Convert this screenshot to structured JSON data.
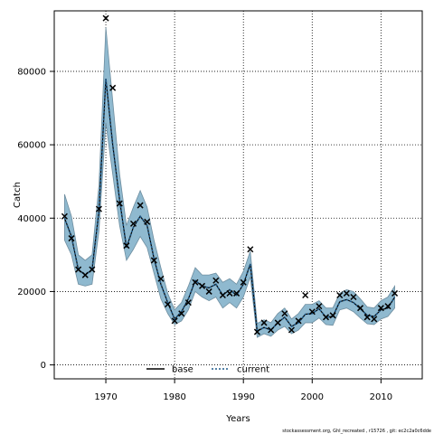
{
  "chart_data": {
    "type": "line",
    "title": "",
    "xlabel": "Years",
    "ylabel": "Catch",
    "xlim": [
      1962.5,
      2016
    ],
    "ylim": [
      -3800,
      96500
    ],
    "x_ticks": [
      1970,
      1980,
      1990,
      2000,
      2010
    ],
    "y_ticks": [
      0,
      20000,
      40000,
      60000,
      80000
    ],
    "grid": true,
    "legend_position": "bottom-center",
    "band_color": "#8fb9cf",
    "band_edge_color": "#6e8ea0",
    "years": [
      1964,
      1965,
      1966,
      1967,
      1968,
      1969,
      1970,
      1971,
      1972,
      1973,
      1974,
      1975,
      1976,
      1977,
      1978,
      1979,
      1980,
      1981,
      1982,
      1983,
      1984,
      1985,
      1986,
      1987,
      1988,
      1989,
      1990,
      1991,
      1992,
      1993,
      1994,
      1995,
      1996,
      1997,
      1998,
      1999,
      2000,
      2001,
      2002,
      2003,
      2004,
      2005,
      2006,
      2007,
      2008,
      2009,
      2010,
      2011,
      2012
    ],
    "series": [
      {
        "name": "base",
        "color": "#000000",
        "style": "solid",
        "values": [
          40000,
          35000,
          26000,
          24500,
          26000,
          42000,
          78000,
          60000,
          45000,
          32000,
          37500,
          40500,
          38000,
          29000,
          22000,
          17000,
          12500,
          14500,
          18000,
          23000,
          21500,
          21000,
          22000,
          19000,
          20500,
          19000,
          22000,
          27500,
          9200,
          10200,
          9500,
          11500,
          13000,
          10500,
          11500,
          13800,
          14000,
          15300,
          13000,
          13200,
          17200,
          17800,
          17000,
          15300,
          13500,
          13200,
          15000,
          15500,
          18500
        ]
      },
      {
        "name": "current",
        "color": "#1f5a8a",
        "style": "dotted",
        "values": [
          40000,
          35000,
          26000,
          24500,
          26000,
          42000,
          78000,
          60000,
          45000,
          32000,
          37500,
          40500,
          38000,
          29000,
          22000,
          17000,
          12500,
          14500,
          18000,
          23000,
          21500,
          21000,
          22000,
          19000,
          20500,
          19000,
          22000,
          27500,
          9200,
          10200,
          9500,
          11500,
          13000,
          10500,
          11500,
          13800,
          14000,
          15300,
          13000,
          13200,
          17200,
          17800,
          17000,
          15300,
          13500,
          13200,
          15000,
          15500,
          18500
        ]
      }
    ],
    "band_upper": [
      46500,
      40500,
      30000,
      28500,
      30000,
      49000,
      92000,
      72000,
      52000,
      38000,
      43000,
      47500,
      43000,
      34000,
      26500,
      19500,
      15000,
      17000,
      21500,
      26500,
      24500,
      24500,
      25000,
      22500,
      23500,
      22000,
      25500,
      31000,
      11300,
      12300,
      11500,
      14000,
      15500,
      12500,
      14000,
      16500,
      16500,
      17500,
      15500,
      15500,
      19500,
      20500,
      20000,
      18000,
      15800,
      15500,
      17500,
      18500,
      21500
    ],
    "band_lower": [
      34000,
      30000,
      22000,
      21500,
      22000,
      36500,
      66000,
      52000,
      38000,
      28500,
      31500,
      35000,
      32000,
      25000,
      18000,
      14000,
      11000,
      12000,
      15000,
      20000,
      18500,
      17500,
      18500,
      15500,
      17000,
      15500,
      18500,
      24000,
      7500,
      8500,
      7800,
      9500,
      10500,
      8500,
      9500,
      11500,
      11500,
      12800,
      11000,
      10800,
      15000,
      15500,
      14500,
      12800,
      11200,
      11000,
      12500,
      13200,
      15500
    ],
    "observed": [
      40500,
      34500,
      26000,
      24500,
      26000,
      42500,
      94500,
      75500,
      44000,
      32500,
      38500,
      43500,
      39000,
      28500,
      23500,
      16500,
      12000,
      14000,
      17000,
      22500,
      21500,
      20000,
      23000,
      19000,
      19500,
      19500,
      22500,
      31500,
      9000,
      11500,
      9500,
      11500,
      14000,
      9500,
      12000,
      19000,
      14500,
      16000,
      13000,
      13500,
      19000,
      19500,
      18500,
      15500,
      13000,
      12500,
      15500,
      16000,
      19500
    ]
  },
  "footnote": "stockassessment.org,  GhI_recreated , r15726 ,  git:  ec2c2a0c6dde"
}
